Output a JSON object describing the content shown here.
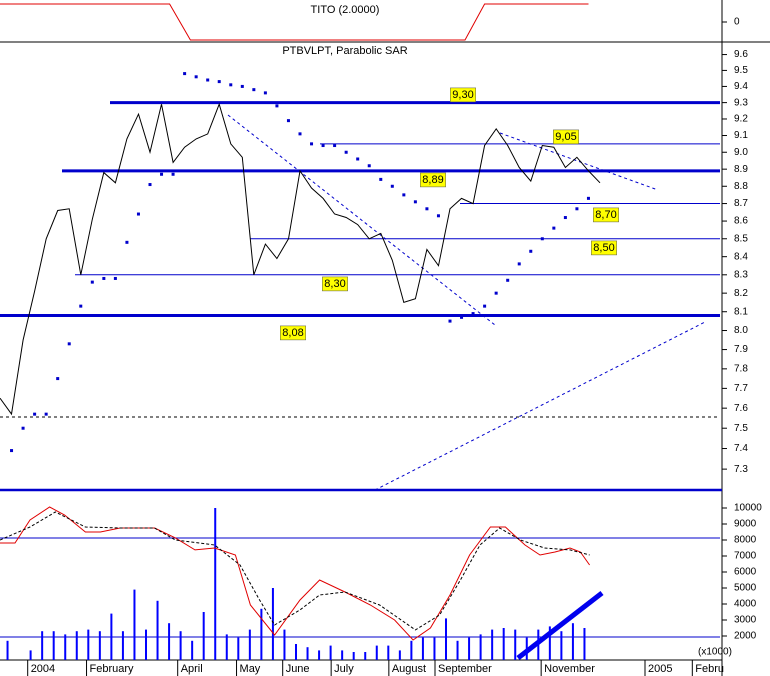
{
  "chart_data": [
    {
      "type": "line",
      "title": "TITO (2.0000)",
      "x": [
        0,
        14.7,
        16.5,
        40.3,
        42,
        51
      ],
      "series": [
        {
          "color": "#e00000",
          "values": [
            1,
            1,
            -1,
            -1,
            1,
            1
          ]
        }
      ],
      "xlim": [
        0,
        62.4
      ],
      "ylim": [
        -1.11,
        1.22
      ],
      "yticks": [
        0
      ]
    },
    {
      "type": "line",
      "title": "PTBVLPT, Parabolic SAR",
      "log_scale": true,
      "x": [
        0,
        1,
        2,
        3,
        4,
        5,
        6,
        7,
        8,
        9,
        10,
        11,
        12,
        13,
        14,
        15,
        16,
        17,
        18,
        19,
        20,
        21,
        22,
        23,
        24,
        25,
        26,
        27,
        28,
        29,
        30,
        31,
        32,
        33,
        34,
        35,
        36,
        37,
        38,
        39,
        40,
        41,
        42,
        43,
        44,
        45,
        46,
        47,
        48,
        49,
        50,
        51,
        52
      ],
      "series": [
        {
          "color": "#000000",
          "values": [
            7.65,
            7.57,
            7.95,
            8.21,
            8.5,
            8.66,
            8.67,
            8.3,
            8.61,
            8.88,
            8.82,
            9.08,
            9.23,
            9.0,
            9.29,
            8.94,
            9.03,
            9.08,
            9.11,
            9.29,
            9.05,
            8.97,
            8.3,
            8.47,
            8.39,
            8.5,
            8.89,
            8.79,
            8.73,
            8.64,
            8.62,
            8.58,
            8.5,
            8.53,
            8.38,
            8.15,
            8.17,
            8.44,
            8.35,
            8.67,
            8.73,
            8.7,
            9.04,
            9.14,
            9.04,
            8.91,
            8.83,
            9.04,
            9.03,
            8.91,
            8.97,
            8.89,
            8.82
          ]
        },
        {
          "color": "#0000cc",
          "marker": "dot",
          "values": [
            null,
            7.39,
            7.5,
            7.57,
            7.57,
            7.75,
            7.93,
            8.13,
            8.26,
            8.28,
            8.28,
            8.48,
            8.64,
            8.81,
            8.87,
            8.87,
            9.48,
            9.46,
            9.44,
            9.43,
            9.41,
            9.4,
            9.38,
            9.36,
            9.28,
            9.19,
            9.11,
            9.05,
            9.04,
            9.04,
            9.0,
            8.96,
            8.92,
            8.84,
            8.8,
            8.75,
            8.71,
            8.67,
            8.63,
            8.05,
            8.07,
            8.09,
            8.13,
            8.2,
            8.27,
            8.36,
            8.43,
            8.5,
            8.56,
            8.62,
            8.67,
            8.73,
            null
          ]
        }
      ],
      "levels": [
        {
          "value": 9.3,
          "label": "9,30",
          "thick": true
        },
        {
          "value": 9.05,
          "label": "9,05",
          "thick": false
        },
        {
          "value": 8.89,
          "label": "8,89",
          "thick": true
        },
        {
          "value": 8.7,
          "label": "8,70",
          "thick": false
        },
        {
          "value": 8.5,
          "label": "8,50",
          "thick": false
        },
        {
          "value": 8.3,
          "label": "8,30",
          "thick": false
        },
        {
          "value": 8.08,
          "label": "8,08",
          "thick": true
        }
      ],
      "level_color": "#0000cc",
      "label_background": "#ffff00",
      "xlim": [
        0,
        62.4
      ],
      "ylim": [
        7.2,
        9.68
      ],
      "yticks": [
        9.6,
        9.5,
        9.4,
        9.3,
        9.2,
        9.1,
        {
          "value": 9,
          "label": "9.0"
        },
        8.9,
        8.8,
        8.7,
        8.6,
        8.5,
        8.4,
        8.3,
        8.2,
        8.1,
        {
          "value": 8,
          "label": "8.0"
        },
        7.9,
        7.8,
        7.7,
        7.6,
        7.5,
        7.4,
        7.3
      ]
    },
    {
      "type": "bar",
      "color": "#0000ff",
      "x": [
        0,
        1,
        2,
        3,
        4,
        5,
        6,
        7,
        8,
        9,
        10,
        11,
        12,
        13,
        14,
        15,
        16,
        17,
        18,
        19,
        20,
        21,
        22,
        23,
        24,
        25,
        26,
        27,
        28,
        29,
        30,
        31,
        32,
        33,
        34,
        35,
        36,
        37,
        38,
        39,
        40,
        41,
        42,
        43,
        44,
        45,
        46,
        47,
        48,
        49,
        50,
        51,
        52
      ],
      "values": [
        null,
        1700,
        null,
        1100,
        2300,
        2300,
        2100,
        2300,
        2400,
        2300,
        3400,
        2300,
        4900,
        2400,
        4200,
        2800,
        2300,
        1700,
        3500,
        10000,
        2100,
        1900,
        2400,
        3700,
        5000,
        2400,
        1500,
        1300,
        1100,
        1400,
        1100,
        1000,
        1000,
        1400,
        1400,
        1100,
        1700,
        1900,
        1900,
        3100,
        1700,
        1900,
        2100,
        2400,
        2500,
        2400,
        1900,
        2400,
        2600,
        2300,
        2800,
        2500,
        null
      ],
      "lines": [
        {
          "color": "#e00000",
          "dashed": false,
          "x": [
            0,
            1.3,
            2.6,
            4.3,
            5.6,
            7.4,
            8.7,
            10.4,
            13.4,
            15.2,
            16.9,
            18.6,
            20.4,
            21.7,
            23.8,
            26,
            27.7,
            29.9,
            32.1,
            34.2,
            35.8,
            37.3,
            39,
            40.7,
            42.5,
            43.8,
            45.5,
            46.8,
            48.1,
            49.4,
            50.3,
            51.1
          ],
          "values": [
            7810,
            7810,
            9250,
            10060,
            9560,
            8500,
            8500,
            8750,
            8750,
            8130,
            7380,
            7500,
            7060,
            3940,
            2060,
            4250,
            5500,
            4750,
            3940,
            3000,
            1750,
            2500,
            4560,
            7060,
            8810,
            8810,
            7690,
            7060,
            7250,
            7500,
            7250,
            6440
          ]
        },
        {
          "color": "#000000",
          "dashed": true,
          "x": [
            0,
            2.6,
            4.8,
            7.4,
            10.4,
            13.4,
            15.2,
            18.6,
            20.8,
            22.5,
            23.8,
            26,
            27.7,
            29.9,
            32.9,
            36,
            38.1,
            39.9,
            41.6,
            43.3,
            45.1,
            47.2,
            49.4,
            51.1
          ],
          "values": [
            8000,
            8810,
            9750,
            8810,
            8750,
            8750,
            8000,
            7690,
            6440,
            4250,
            2690,
            3630,
            4560,
            4750,
            3940,
            2380,
            3310,
            5500,
            7690,
            8750,
            8000,
            7500,
            7380,
            7060
          ]
        }
      ],
      "xlim": [
        0,
        62.4
      ],
      "ylim": [
        500,
        11125
      ],
      "yticks": [
        10000,
        9000,
        8000,
        7000,
        6000,
        5000,
        4000,
        3000,
        2000
      ],
      "unit_label": "(x1000)",
      "xticks": [
        {
          "value": 2.4,
          "label": "2004"
        },
        {
          "value": 7.5,
          "label": "February"
        },
        {
          "value": 15.4,
          "label": "April"
        },
        {
          "value": 20.5,
          "label": "May"
        },
        {
          "value": 24.5,
          "label": "June"
        },
        {
          "value": 28.7,
          "label": "July"
        },
        {
          "value": 33.7,
          "label": "August"
        },
        {
          "value": 37.7,
          "label": "September"
        },
        {
          "value": 46.9,
          "label": "November"
        },
        {
          "value": 55.9,
          "label": "2005"
        },
        {
          "value": 60,
          "label": "Febru"
        }
      ]
    }
  ]
}
